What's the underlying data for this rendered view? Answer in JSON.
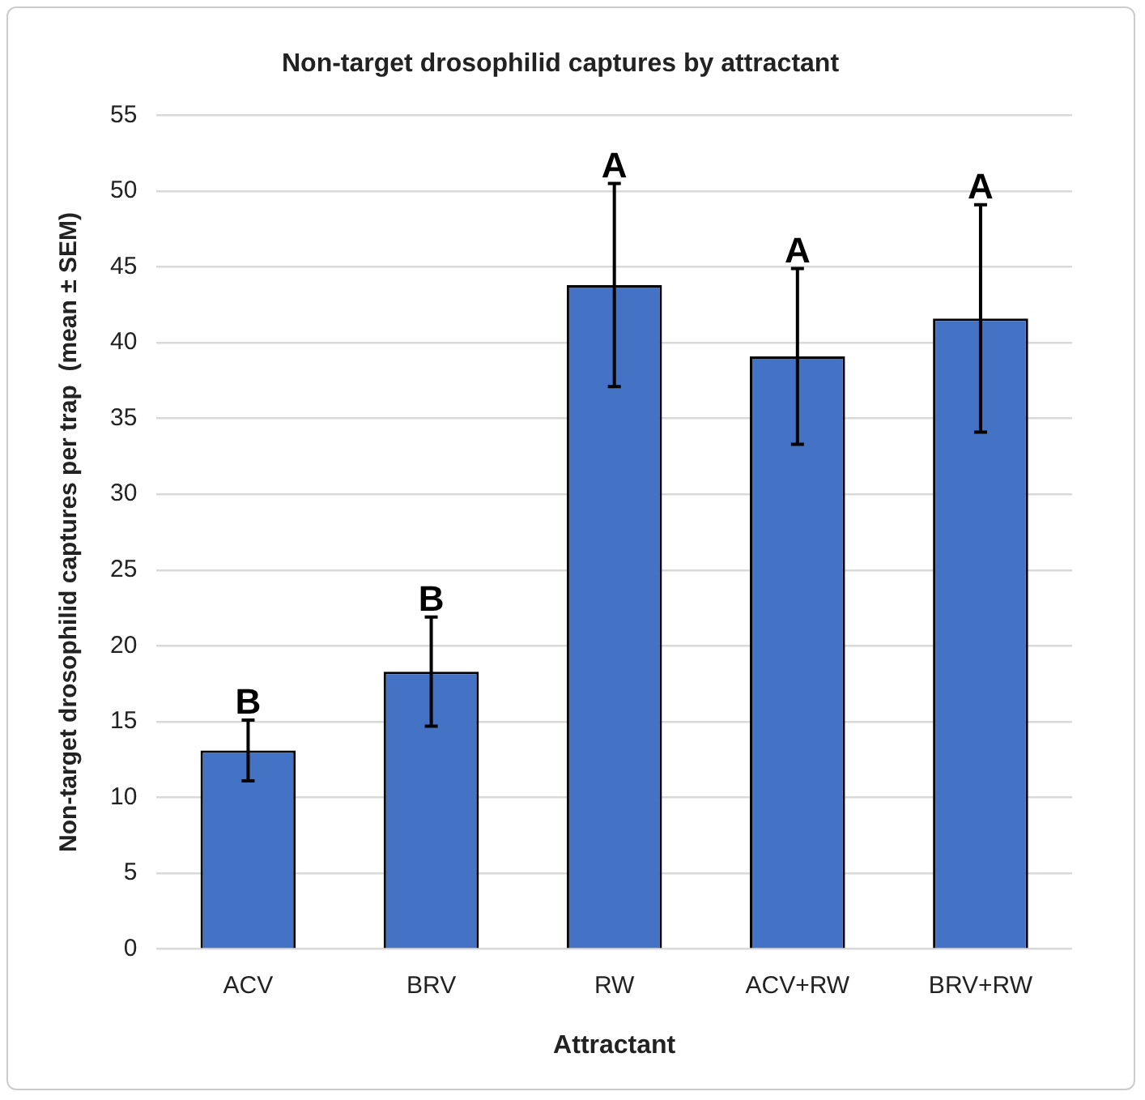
{
  "chart_data": {
    "type": "bar",
    "title": "Non-target drosophilid captures by attractant",
    "xlabel": "Attractant",
    "ylabel": "Non-target drosophilid captures per trap  (mean ± SEM)",
    "categories": [
      "ACV",
      "BRV",
      "RW",
      "ACV+RW",
      "BRV+RW"
    ],
    "values": [
      13.1,
      18.3,
      43.8,
      39.1,
      41.6
    ],
    "errors": [
      2.0,
      3.6,
      6.7,
      5.8,
      7.5
    ],
    "color": "#4472c4",
    "ylim": [
      0,
      55
    ],
    "yticks": [
      0,
      5,
      10,
      15,
      20,
      25,
      30,
      35,
      40,
      45,
      50,
      55
    ],
    "grid": "y",
    "legend": false,
    "annotations": [
      {
        "text": "B",
        "x": "ACV",
        "y": 15.1
      },
      {
        "text": "B",
        "x": "BRV",
        "y": 21.9
      },
      {
        "text": "A",
        "x": "RW",
        "y": 50.5
      },
      {
        "text": "A",
        "x": "ACV+RW",
        "y": 44.9
      },
      {
        "text": "A",
        "x": "BRV+RW",
        "y": 49.1
      }
    ]
  }
}
